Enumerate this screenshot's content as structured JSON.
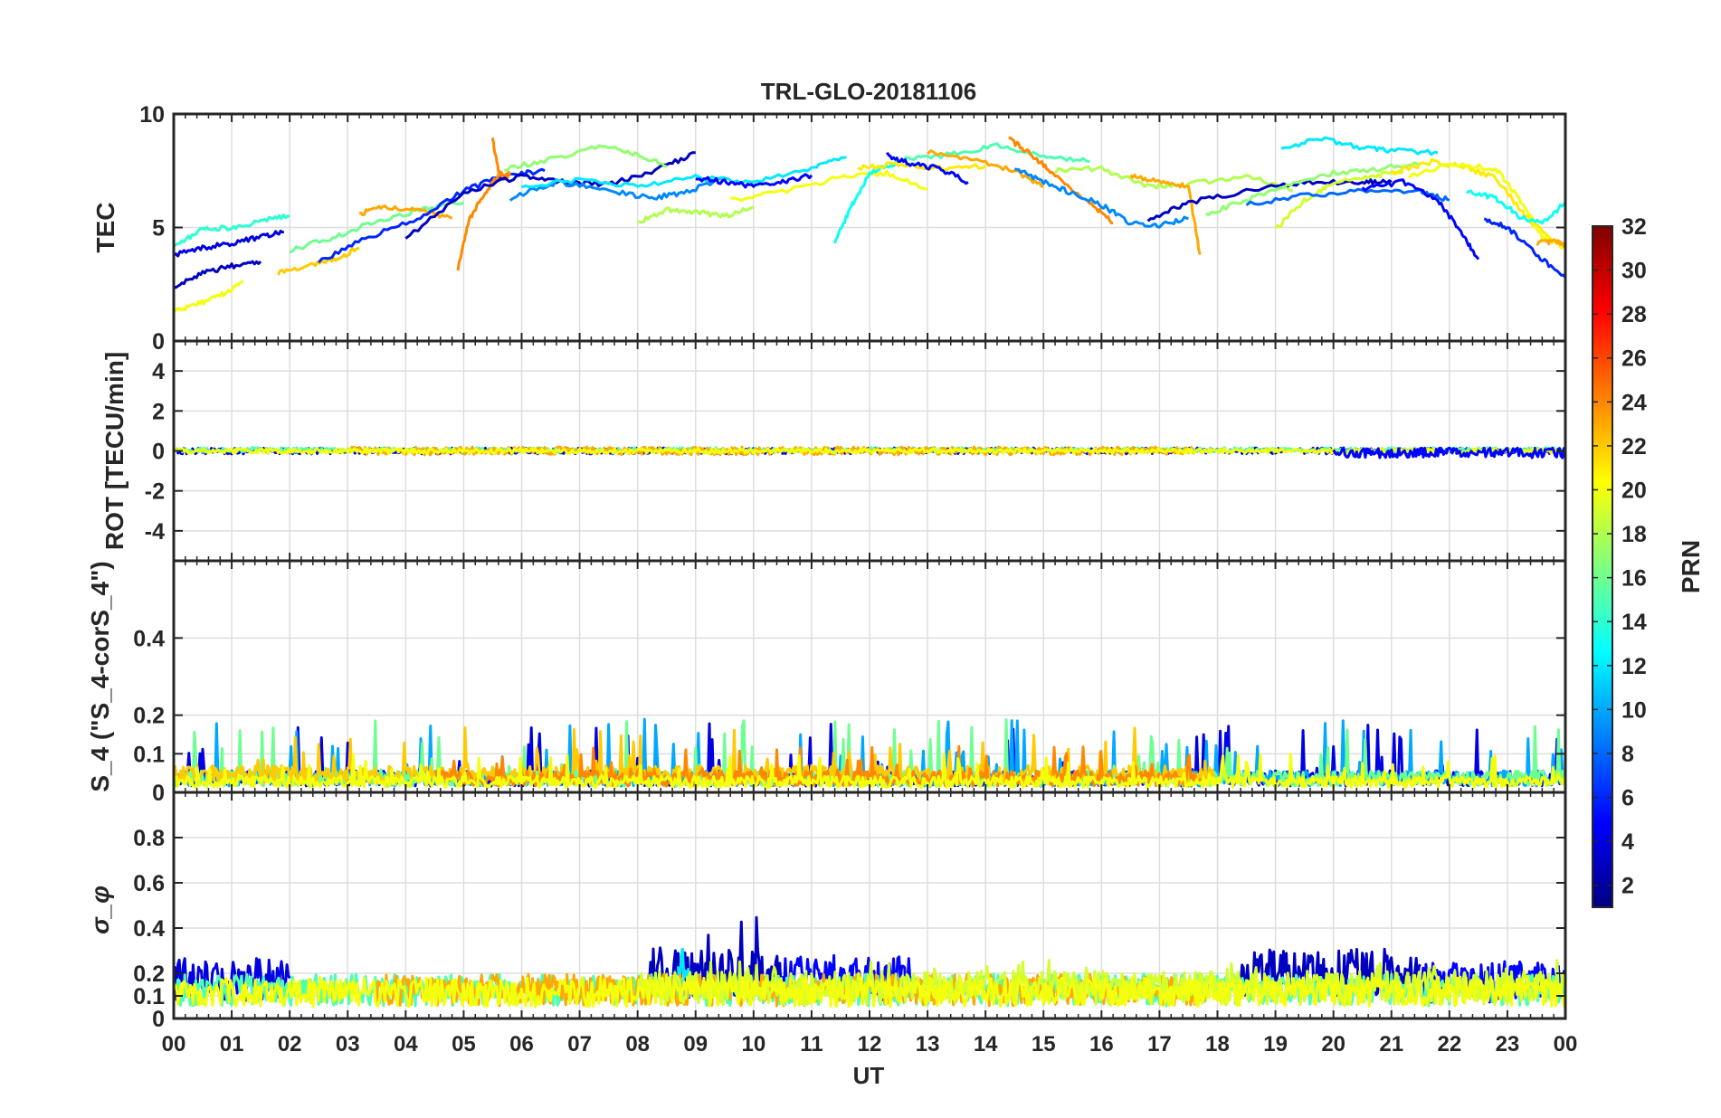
{
  "chart_data": {
    "type": "line",
    "title": "TRL-GLO-20181106",
    "xlabel": "UT",
    "x_tick_labels": [
      "00",
      "01",
      "02",
      "03",
      "04",
      "05",
      "06",
      "07",
      "08",
      "09",
      "10",
      "11",
      "12",
      "13",
      "14",
      "15",
      "16",
      "17",
      "18",
      "19",
      "20",
      "21",
      "22",
      "23",
      "00"
    ],
    "xlim": [
      0,
      24
    ],
    "grid": true,
    "colorbar": {
      "label": "PRN",
      "range": [
        1,
        32
      ],
      "colormap": "jet",
      "tick_labels": [
        "2",
        "4",
        "6",
        "8",
        "10",
        "12",
        "14",
        "16",
        "18",
        "20",
        "22",
        "24",
        "26",
        "28",
        "30",
        "32"
      ]
    },
    "panels": [
      {
        "id": "tec",
        "ylabel": "TEC",
        "ylim": [
          0,
          10
        ],
        "yticks": [
          "0",
          "5",
          "10"
        ],
        "series": [
          {
            "prn": 4,
            "x": [
              0,
              0.5,
              1,
              1.5,
              1.9
            ],
            "y": [
              3.8,
              4.1,
              4.3,
              4.6,
              4.8
            ]
          },
          {
            "prn": 14,
            "x": [
              0,
              0.5,
              1,
              1.5,
              2.0
            ],
            "y": [
              4.2,
              4.9,
              5.0,
              5.3,
              5.5
            ]
          },
          {
            "prn": 20,
            "x": [
              0,
              0.4,
              0.8,
              1.2
            ],
            "y": [
              1.3,
              1.6,
              2.0,
              2.6
            ]
          },
          {
            "prn": 3,
            "x": [
              0,
              0.5,
              1.0,
              1.5
            ],
            "y": [
              2.4,
              3.0,
              3.3,
              3.5
            ]
          },
          {
            "prn": 22,
            "x": [
              1.8,
              2.3,
              2.8,
              3.2
            ],
            "y": [
              3.0,
              3.3,
              3.6,
              4.1
            ]
          },
          {
            "prn": 16,
            "x": [
              2.0,
              2.8,
              3.5,
              4.3,
              5.0
            ],
            "y": [
              4.0,
              4.6,
              5.3,
              5.8,
              6.1
            ]
          },
          {
            "prn": 23,
            "x": [
              3.2,
              3.6,
              4.2,
              4.8
            ],
            "y": [
              5.6,
              5.9,
              5.8,
              5.4
            ]
          },
          {
            "prn": 6,
            "x": [
              2.5,
              3.3,
              4.2,
              5.0,
              5.7,
              6.4
            ],
            "y": [
              3.5,
              4.5,
              5.4,
              6.6,
              7.3,
              7.5
            ]
          },
          {
            "prn": 24,
            "x": [
              4.9,
              5.1,
              5.4,
              5.6
            ],
            "y": [
              3.2,
              5.4,
              6.6,
              7.3
            ]
          },
          {
            "prn": 24,
            "x": [
              5.5,
              5.6,
              5.7,
              5.8
            ],
            "y": [
              8.9,
              7.5,
              7.2,
              7.4
            ]
          },
          {
            "prn": 3,
            "x": [
              4.0,
              5.0,
              6.0,
              6.7,
              7.5,
              8.3,
              9.0
            ],
            "y": [
              4.5,
              6.5,
              7.3,
              7.0,
              6.9,
              7.5,
              8.3
            ]
          },
          {
            "prn": 17,
            "x": [
              5.7,
              6.5,
              7.4,
              8.0,
              8.5
            ],
            "y": [
              7.6,
              8.0,
              8.6,
              8.2,
              7.7
            ]
          },
          {
            "prn": 9,
            "x": [
              5.8,
              6.6,
              7.4,
              8.2,
              8.8,
              9.5
            ],
            "y": [
              6.3,
              7.0,
              6.7,
              6.3,
              6.5,
              7.2
            ]
          },
          {
            "prn": 12,
            "x": [
              6.0,
              7.0,
              8.0,
              9.0,
              10.0,
              11.0,
              11.6
            ],
            "y": [
              6.8,
              7.1,
              6.8,
              7.2,
              7.0,
              7.6,
              8.1
            ]
          },
          {
            "prn": 5,
            "x": [
              9.0,
              9.5,
              10.0,
              10.5,
              11.0
            ],
            "y": [
              7.2,
              7.0,
              6.8,
              7.0,
              7.3
            ]
          },
          {
            "prn": 18,
            "x": [
              8.0,
              8.5,
              9.0,
              9.5,
              10.0
            ],
            "y": [
              5.2,
              5.8,
              5.7,
              5.5,
              5.9
            ]
          },
          {
            "prn": 20,
            "x": [
              9.6,
              10.5,
              11.5,
              12.3,
              13.0
            ],
            "y": [
              6.2,
              6.6,
              7.2,
              7.4,
              6.7
            ]
          },
          {
            "prn": 13,
            "x": [
              11.4,
              11.7,
              12.0,
              12.5
            ],
            "y": [
              4.4,
              6.0,
              7.4,
              7.9
            ]
          },
          {
            "prn": 21,
            "x": [
              11.8,
              12.5,
              13.2,
              14.0
            ],
            "y": [
              7.6,
              7.8,
              7.6,
              7.7
            ]
          },
          {
            "prn": 5,
            "x": [
              12.3,
              12.7,
              13.2,
              13.7
            ],
            "y": [
              8.2,
              7.8,
              7.6,
              7.0
            ]
          },
          {
            "prn": 15,
            "x": [
              12.6,
              13.4,
              14.2,
              15.0,
              15.8
            ],
            "y": [
              8.0,
              8.2,
              8.6,
              8.2,
              7.9
            ]
          },
          {
            "prn": 23,
            "x": [
              13.0,
              13.8,
              14.5,
              15.0
            ],
            "y": [
              8.3,
              8.0,
              7.5,
              6.8
            ]
          },
          {
            "prn": 24,
            "x": [
              14.4,
              14.8,
              15.2,
              15.8,
              16.2
            ],
            "y": [
              8.9,
              8.2,
              7.3,
              6.1,
              5.2
            ]
          },
          {
            "prn": 9,
            "x": [
              14.5,
              15.0,
              15.5,
              16.0,
              16.5,
              17.0,
              17.5
            ],
            "y": [
              7.6,
              7.0,
              6.5,
              6.0,
              5.2,
              5.1,
              5.4
            ]
          },
          {
            "prn": 18,
            "x": [
              15.2,
              16.0,
              16.8,
              17.5,
              18.5,
              19.3
            ],
            "y": [
              7.5,
              7.6,
              6.8,
              6.9,
              7.3,
              6.6
            ]
          },
          {
            "prn": 23,
            "x": [
              16.5,
              17.0,
              17.5,
              17.7
            ],
            "y": [
              7.3,
              7.0,
              6.8,
              3.8
            ]
          },
          {
            "prn": 3,
            "x": [
              16.8,
              17.5,
              18.5,
              19.5,
              20.5,
              21.0
            ],
            "y": [
              5.3,
              6.1,
              6.6,
              7.0,
              7.0,
              7.0
            ]
          },
          {
            "prn": 17,
            "x": [
              17.8,
              18.5,
              19.2,
              20.0,
              20.8,
              21.5
            ],
            "y": [
              5.6,
              6.2,
              6.9,
              7.4,
              7.6,
              7.8
            ]
          },
          {
            "prn": 19,
            "x": [
              19.0,
              19.5,
              20.0,
              20.7,
              21.2
            ],
            "y": [
              4.9,
              6.2,
              7.0,
              7.3,
              7.5
            ]
          },
          {
            "prn": 12,
            "x": [
              19.1,
              19.8,
              20.5,
              21.0,
              21.8
            ],
            "y": [
              8.5,
              8.9,
              8.5,
              8.4,
              8.3
            ]
          },
          {
            "prn": 8,
            "x": [
              18.5,
              19.5,
              20.5,
              21.5,
              22.0
            ],
            "y": [
              6.0,
              6.4,
              6.6,
              6.6,
              6.2
            ]
          },
          {
            "prn": 5,
            "x": [
              20.5,
              21.2,
              21.8,
              22.2,
              22.5
            ],
            "y": [
              6.7,
              7.0,
              6.2,
              4.8,
              3.6
            ]
          },
          {
            "prn": 21,
            "x": [
              21.0,
              21.7,
              22.2,
              22.8,
              23.3,
              23.8
            ],
            "y": [
              7.4,
              7.9,
              7.7,
              7.2,
              5.5,
              4.4
            ]
          },
          {
            "prn": 20,
            "x": [
              21.3,
              22.0,
              22.8,
              23.2,
              23.6,
              24.0
            ],
            "y": [
              7.2,
              7.8,
              7.6,
              6.3,
              4.6,
              4.1
            ]
          },
          {
            "prn": 13,
            "x": [
              22.3,
              22.8,
              23.2,
              23.6,
              24.0
            ],
            "y": [
              6.6,
              6.3,
              5.5,
              5.2,
              6.1
            ]
          },
          {
            "prn": 6,
            "x": [
              22.6,
              23.0,
              23.5,
              24.0
            ],
            "y": [
              5.4,
              5.0,
              3.8,
              2.8
            ]
          },
          {
            "prn": 23,
            "x": [
              23.5,
              23.8,
              24.0
            ],
            "y": [
              4.3,
              4.4,
              4.2
            ]
          }
        ]
      },
      {
        "id": "rot",
        "ylabel": "ROT [TECU/min]",
        "ylim": [
          -5.5,
          5.5
        ],
        "yticks": [
          "4",
          "2",
          "0",
          "-2",
          "-4"
        ],
        "series": [
          {
            "prn": 4,
            "x_range": [
              0,
              24
            ],
            "center": 0.0,
            "amplitude": 0.15
          },
          {
            "prn": 15,
            "x_range": [
              0,
              24
            ],
            "center": 0.05,
            "amplitude": 0.12
          },
          {
            "prn": 23,
            "x_range": [
              3,
              17.6
            ],
            "center": 0.0,
            "amplitude": 0.2
          },
          {
            "prn": 20,
            "x_range": [
              0,
              24
            ],
            "center": 0.0,
            "amplitude": 0.12
          },
          {
            "prn": 5,
            "x_range": [
              20,
              24
            ],
            "center": -0.1,
            "amplitude": 0.25
          }
        ]
      },
      {
        "id": "s4",
        "ylabel": "S_4 (\"S_4-corS_4\")",
        "ylim": [
          0,
          0.6
        ],
        "yticks": [
          "0.4",
          "0.2",
          "0.1",
          "0"
        ],
        "series": [
          {
            "prn": 4,
            "x_range": [
              0,
              24
            ],
            "baseline": 0.04,
            "peak": 0.18
          },
          {
            "prn": 10,
            "x_range": [
              0,
              24
            ],
            "baseline": 0.04,
            "peak": 0.19
          },
          {
            "prn": 16,
            "x_range": [
              0,
              24
            ],
            "baseline": 0.04,
            "peak": 0.19
          },
          {
            "prn": 22,
            "x_range": [
              0,
              18
            ],
            "baseline": 0.05,
            "peak": 0.17
          },
          {
            "prn": 24,
            "x_range": [
              4.5,
              17.8
            ],
            "baseline": 0.04,
            "peak": 0.12
          },
          {
            "prn": 20,
            "x_range": [
              0,
              24
            ],
            "baseline": 0.03,
            "peak": 0.1
          }
        ]
      },
      {
        "id": "sigma_phi",
        "ylabel": "σ_φ",
        "ylim": [
          0,
          1.0
        ],
        "yticks": [
          "0.8",
          "0.6",
          "0.4",
          "0.2",
          "0.1",
          "0"
        ],
        "series": [
          {
            "prn": 4,
            "x_range": [
              0,
              2
            ],
            "baseline": 0.19,
            "peak": 0.27
          },
          {
            "prn": 3,
            "x_range": [
              8.2,
              10.5
            ],
            "baseline": 0.22,
            "peak": 0.46
          },
          {
            "prn": 5,
            "x_range": [
              10.5,
              12.7
            ],
            "baseline": 0.2,
            "peak": 0.25
          },
          {
            "prn": 3,
            "x_range": [
              18.4,
              21.5
            ],
            "baseline": 0.22,
            "peak": 0.33
          },
          {
            "prn": 5,
            "x_range": [
              21.5,
              24
            ],
            "baseline": 0.18,
            "peak": 0.24
          },
          {
            "prn": 12,
            "x_range": [
              8.7,
              8.9
            ],
            "baseline": 0.2,
            "peak": 0.4
          },
          {
            "prn": 15,
            "x_range": [
              0,
              24
            ],
            "baseline": 0.14,
            "peak": 0.19
          },
          {
            "prn": 23,
            "x_range": [
              3.5,
              17.8
            ],
            "baseline": 0.14,
            "peak": 0.18
          },
          {
            "prn": 19,
            "x_range": [
              8,
              24
            ],
            "baseline": 0.15,
            "peak": 0.26
          },
          {
            "prn": 20,
            "x_range": [
              0,
              24
            ],
            "baseline": 0.13,
            "peak": 0.17
          }
        ]
      }
    ]
  }
}
